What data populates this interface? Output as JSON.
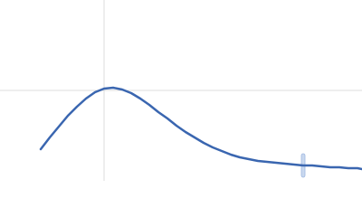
{
  "chart_data": {
    "type": "line",
    "x": [
      45,
      55,
      65,
      75,
      85,
      95,
      105,
      115,
      125,
      135,
      145,
      155,
      165,
      175,
      185,
      195,
      205,
      215,
      225,
      235,
      245,
      255,
      265,
      275,
      285,
      295,
      305,
      315,
      325,
      335,
      345,
      355,
      365,
      375,
      385,
      395,
      400
    ],
    "series": [
      {
        "color": "#3a66b0",
        "values": [
          35,
          48,
          60,
          72,
          82,
          91,
          98,
          102,
          103,
          101,
          97,
          91,
          84,
          76,
          69,
          61,
          54,
          48,
          42,
          37,
          33,
          29,
          26,
          24,
          22,
          21,
          20,
          19,
          18,
          17,
          17,
          16,
          15,
          15,
          14,
          14,
          13
        ],
        "errors": [
          null,
          null,
          null,
          null,
          null,
          null,
          null,
          null,
          null,
          null,
          null,
          null,
          null,
          null,
          null,
          null,
          null,
          null,
          null,
          null,
          null,
          null,
          null,
          null,
          null,
          null,
          null,
          null,
          null,
          13,
          null,
          null,
          null,
          null,
          null,
          null,
          null
        ]
      }
    ],
    "xlim": [
      0,
      400
    ],
    "ylim": [
      0,
      200
    ],
    "xticks": [
      115
    ],
    "yticks": [
      100
    ],
    "grid": true
  }
}
